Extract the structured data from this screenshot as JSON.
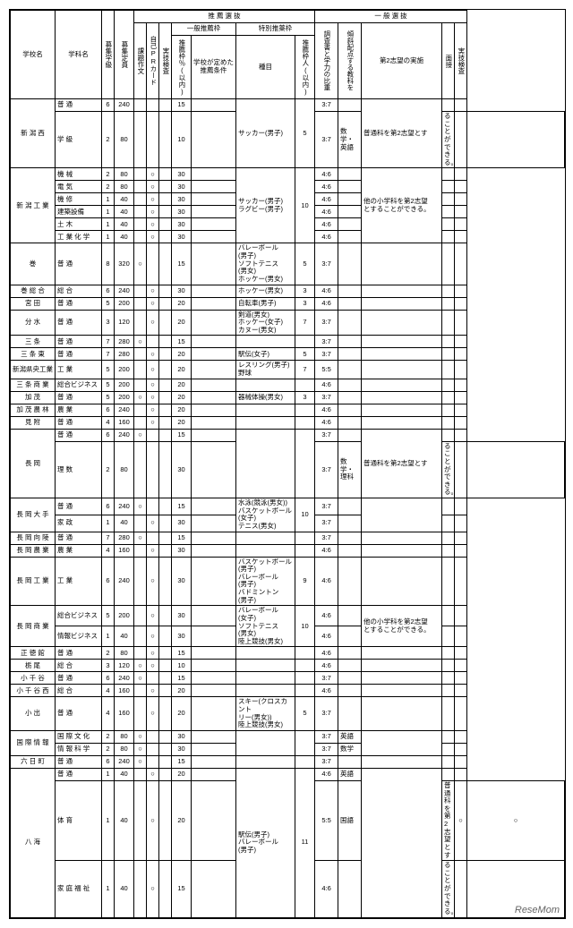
{
  "logo": "ReseMom",
  "header": {
    "school": "学校名",
    "dept": "学科名",
    "classes": "募集学級",
    "capacity": "募集定員",
    "suisen": "推 薦 選 抜",
    "ippan": "一 般 選 抜",
    "ippan_waku": "一般推薦枠",
    "tokubetsu_waku": "特別推薬枠",
    "kadai": "課題作文",
    "pr": "自己PRカード",
    "jitsugi_s": "実技検査",
    "suisen_pct": "推薦枠％(以内)",
    "gakko_cond": "学校が定めた推薦条件",
    "shumoku": "種目",
    "suisen_nin": "推薦枠人(以内)",
    "chousa": "調査書と学力の比重",
    "hairo": "傾斜配点する教科を",
    "dai2": "第2志望の実施",
    "mensetsu": "面接",
    "jitsugi_i": "実技検査"
  },
  "rows": [
    {
      "school": "新 潟 西",
      "g": 2,
      "dept": "普 通",
      "cl": "6",
      "cap": "240",
      "mk": [
        "",
        "",
        ""
      ],
      "pct": "15",
      "cond": "",
      "evt": "サッカー(男子)",
      "sp": "5",
      "rat": "3:7",
      "sub": "",
      "note": "普通科を第2志望とす"
    },
    {
      "school": "",
      "g": 0,
      "dept": "学 級",
      "cl": "2",
      "cap": "80",
      "mk": [
        "",
        "",
        ""
      ],
      "pct": "10",
      "cond": "",
      "evt": "",
      "sp": "",
      "rat": "3:7",
      "sub": "数学・英語",
      "note": "ることができる。"
    },
    {
      "school": "新 潟 工 業",
      "g": 6,
      "dept": "機 械",
      "cl": "2",
      "cap": "80",
      "mk": [
        "",
        "○",
        ""
      ],
      "pct": "30",
      "cond": "",
      "evt": "サッカー(男子)\nラグビー(男子)",
      "sp": "10",
      "rat": "4:6",
      "sub": "",
      "note": "他の小学科を第2志望\nとすることができる。"
    },
    {
      "school": "",
      "g": 0,
      "dept": "電 気",
      "cl": "2",
      "cap": "80",
      "mk": [
        "",
        "○",
        ""
      ],
      "pct": "30",
      "cond": "",
      "evt": "",
      "sp": "",
      "rat": "4:6",
      "sub": "",
      "note": ""
    },
    {
      "school": "",
      "g": 0,
      "dept": "機 修",
      "cl": "1",
      "cap": "40",
      "mk": [
        "",
        "○",
        ""
      ],
      "pct": "30",
      "cond": "",
      "evt": "",
      "sp": "",
      "rat": "4:6",
      "sub": "",
      "note": ""
    },
    {
      "school": "",
      "g": 0,
      "dept": "建築設備",
      "cl": "1",
      "cap": "40",
      "mk": [
        "",
        "○",
        ""
      ],
      "pct": "30",
      "cond": "",
      "evt": "",
      "sp": "",
      "rat": "4:6",
      "sub": "",
      "note": ""
    },
    {
      "school": "",
      "g": 0,
      "dept": "土 木",
      "cl": "1",
      "cap": "40",
      "mk": [
        "",
        "○",
        ""
      ],
      "pct": "30",
      "cond": "",
      "evt": "",
      "sp": "",
      "rat": "4:6",
      "sub": "",
      "note": ""
    },
    {
      "school": "",
      "g": 0,
      "dept": "工 業 化 学",
      "cl": "1",
      "cap": "40",
      "mk": [
        "",
        "○",
        ""
      ],
      "pct": "30",
      "cond": "",
      "evt": "",
      "sp": "",
      "rat": "4:6",
      "sub": "",
      "note": ""
    },
    {
      "school": "巻",
      "g": 1,
      "dept": "普 通",
      "cl": "8",
      "cap": "320",
      "mk": [
        "○",
        "",
        ""
      ],
      "pct": "15",
      "cond": "",
      "evt": "バレーボール\n(男子)\nソフトテニス\n(男女)\nホッケー(男女)",
      "sp": "5",
      "rat": "3:7",
      "sub": "",
      "note": ""
    },
    {
      "school": "巻 総 合",
      "g": 1,
      "dept": "総 合",
      "cl": "6",
      "cap": "240",
      "mk": [
        "",
        "○",
        ""
      ],
      "pct": "30",
      "cond": "",
      "evt": "ホッケー(男女)",
      "sp": "3",
      "rat": "4:6",
      "sub": "",
      "note": ""
    },
    {
      "school": "宮 田",
      "g": 1,
      "dept": "普 通",
      "cl": "5",
      "cap": "200",
      "mk": [
        "",
        "○",
        ""
      ],
      "pct": "20",
      "cond": "",
      "evt": "自転車(男子)",
      "sp": "3",
      "rat": "4:6",
      "sub": "",
      "note": ""
    },
    {
      "school": "分 水",
      "g": 1,
      "dept": "普 通",
      "cl": "3",
      "cap": "120",
      "mk": [
        "",
        "○",
        ""
      ],
      "pct": "20",
      "cond": "",
      "evt": "剣道(男女)\nホッケー(女子)\nカヌー(男女)",
      "sp": "7",
      "rat": "3:7",
      "sub": "",
      "note": ""
    },
    {
      "school": "三 条",
      "g": 1,
      "dept": "普 通",
      "cl": "7",
      "cap": "280",
      "mk": [
        "○",
        "",
        ""
      ],
      "pct": "15",
      "cond": "",
      "evt": "",
      "sp": "",
      "rat": "3:7",
      "sub": "",
      "note": ""
    },
    {
      "school": "三 条 東",
      "g": 1,
      "dept": "普 通",
      "cl": "7",
      "cap": "280",
      "mk": [
        "",
        "○",
        ""
      ],
      "pct": "20",
      "cond": "",
      "evt": "駅伝(女子)",
      "sp": "5",
      "rat": "3:7",
      "sub": "",
      "note": ""
    },
    {
      "school": "新潟県央工業",
      "g": 1,
      "dept": "工 業",
      "cl": "5",
      "cap": "200",
      "mk": [
        "",
        "○",
        ""
      ],
      "pct": "20",
      "cond": "",
      "evt": "レスリング(男子)\n野球",
      "sp": "7",
      "rat": "5:5",
      "sub": "",
      "note": ""
    },
    {
      "school": "三 条 商 業",
      "g": 1,
      "dept": "総合ビジネス",
      "cl": "5",
      "cap": "200",
      "mk": [
        "",
        "○",
        ""
      ],
      "pct": "20",
      "cond": "",
      "evt": "",
      "sp": "",
      "rat": "4:6",
      "sub": "",
      "note": ""
    },
    {
      "school": "加 茂",
      "g": 1,
      "dept": "普 通",
      "cl": "5",
      "cap": "200",
      "mk": [
        "○",
        "○",
        ""
      ],
      "pct": "20",
      "cond": "",
      "evt": "器械体操(男女)",
      "sp": "3",
      "rat": "3:7",
      "sub": "",
      "note": ""
    },
    {
      "school": "加 茂 農 林",
      "g": 1,
      "dept": "農 業",
      "cl": "6",
      "cap": "240",
      "mk": [
        "",
        "○",
        ""
      ],
      "pct": "20",
      "cond": "",
      "evt": "",
      "sp": "",
      "rat": "4:6",
      "sub": "",
      "note": ""
    },
    {
      "school": "見 附",
      "g": 1,
      "dept": "普 通",
      "cl": "4",
      "cap": "160",
      "mk": [
        "",
        "○",
        ""
      ],
      "pct": "20",
      "cond": "",
      "evt": "",
      "sp": "",
      "rat": "4:6",
      "sub": "",
      "note": ""
    },
    {
      "school": "長 岡",
      "g": 2,
      "dept": "普 通",
      "cl": "6",
      "cap": "240",
      "mk": [
        "○",
        "",
        ""
      ],
      "pct": "15",
      "cond": "",
      "evt": "",
      "sp": "",
      "rat": "3:7",
      "sub": "",
      "note": "普通科を第2志望とす"
    },
    {
      "school": "",
      "g": 0,
      "dept": "理 数",
      "cl": "2",
      "cap": "80",
      "mk": [
        "",
        "",
        ""
      ],
      "pct": "30",
      "cond": "",
      "evt": "",
      "sp": "",
      "rat": "3:7",
      "sub": "数学・理科",
      "note": "ることができる。"
    },
    {
      "school": "長 岡 大 手",
      "g": 2,
      "dept": "普 通",
      "cl": "6",
      "cap": "240",
      "mk": [
        "○",
        "",
        ""
      ],
      "pct": "15",
      "cond": "",
      "evt": "水泳(競泳(男女))\nバスケットボール\n(女子)\nテニス(男女)",
      "sp": "10",
      "rat": "3:7",
      "sub": "",
      "note": ""
    },
    {
      "school": "",
      "g": 0,
      "dept": "家 政",
      "cl": "1",
      "cap": "40",
      "mk": [
        "",
        "○",
        ""
      ],
      "pct": "30",
      "cond": "",
      "evt": "",
      "sp": "",
      "rat": "3:7",
      "sub": "",
      "note": ""
    },
    {
      "school": "長 岡 向 陵",
      "g": 1,
      "dept": "普 通",
      "cl": "7",
      "cap": "280",
      "mk": [
        "○",
        "",
        ""
      ],
      "pct": "15",
      "cond": "",
      "evt": "",
      "sp": "",
      "rat": "3:7",
      "sub": "",
      "note": ""
    },
    {
      "school": "長 岡 農 業",
      "g": 1,
      "dept": "農 業",
      "cl": "4",
      "cap": "160",
      "mk": [
        "",
        "○",
        ""
      ],
      "pct": "30",
      "cond": "",
      "evt": "",
      "sp": "",
      "rat": "4:6",
      "sub": "",
      "note": ""
    },
    {
      "school": "長 岡 工 業",
      "g": 1,
      "dept": "工 業",
      "cl": "6",
      "cap": "240",
      "mk": [
        "",
        "○",
        ""
      ],
      "pct": "30",
      "cond": "",
      "evt": "バスケットボール\n(男子)\nバレーボール\n(男子)\nバドミントン\n(男子)",
      "sp": "9",
      "rat": "4:6",
      "sub": "",
      "note": ""
    },
    {
      "school": "長 岡 商 業",
      "g": 2,
      "dept": "総合ビジネス",
      "cl": "5",
      "cap": "200",
      "mk": [
        "",
        "○",
        ""
      ],
      "pct": "30",
      "cond": "",
      "evt": "バレーボール\n(女子)\nソフトテニス\n(男女)\n陸上競技(男女)",
      "sp": "10",
      "rat": "4:6",
      "sub": "",
      "note": "他の小学科を第2志望\nとすることができる。"
    },
    {
      "school": "",
      "g": 0,
      "dept": "情報ビジネス",
      "cl": "1",
      "cap": "40",
      "mk": [
        "",
        "○",
        ""
      ],
      "pct": "30",
      "cond": "",
      "evt": "",
      "sp": "",
      "rat": "4:6",
      "sub": "",
      "note": ""
    },
    {
      "school": "正 徳 館",
      "g": 1,
      "dept": "普 通",
      "cl": "2",
      "cap": "80",
      "mk": [
        "",
        "○",
        ""
      ],
      "pct": "15",
      "cond": "",
      "evt": "",
      "sp": "",
      "rat": "4:6",
      "sub": "",
      "note": ""
    },
    {
      "school": "栃 尾",
      "g": 1,
      "dept": "総 合",
      "cl": "3",
      "cap": "120",
      "mk": [
        "○",
        "○",
        ""
      ],
      "pct": "10",
      "cond": "",
      "evt": "",
      "sp": "",
      "rat": "4:6",
      "sub": "",
      "note": ""
    },
    {
      "school": "小 千 谷",
      "g": 1,
      "dept": "普 通",
      "cl": "6",
      "cap": "240",
      "mk": [
        "○",
        "",
        ""
      ],
      "pct": "15",
      "cond": "",
      "evt": "",
      "sp": "",
      "rat": "3:7",
      "sub": "",
      "note": ""
    },
    {
      "school": "小 千 谷 西",
      "g": 1,
      "dept": "総 合",
      "cl": "4",
      "cap": "160",
      "mk": [
        "",
        "○",
        ""
      ],
      "pct": "20",
      "cond": "",
      "evt": "",
      "sp": "",
      "rat": "4:6",
      "sub": "",
      "note": ""
    },
    {
      "school": "小 出",
      "g": 1,
      "dept": "普 通",
      "cl": "4",
      "cap": "160",
      "mk": [
        "",
        "○",
        ""
      ],
      "pct": "20",
      "cond": "",
      "evt": "スキー(クロスカント\nリー(男女))\n陸上競技(男女)",
      "sp": "5",
      "rat": "3:7",
      "sub": "",
      "note": ""
    },
    {
      "school": "国 際 情 報",
      "g": 2,
      "dept": "国 際 文 化",
      "cl": "2",
      "cap": "80",
      "mk": [
        "○",
        "",
        ""
      ],
      "pct": "30",
      "cond": "",
      "evt": "",
      "sp": "",
      "rat": "3:7",
      "sub": "英語",
      "note": ""
    },
    {
      "school": "",
      "g": 0,
      "dept": "情 報 科 学",
      "cl": "2",
      "cap": "80",
      "mk": [
        "○",
        "",
        ""
      ],
      "pct": "30",
      "cond": "",
      "evt": "",
      "sp": "",
      "rat": "3:7",
      "sub": "数学",
      "note": ""
    },
    {
      "school": "六 日 町",
      "g": 1,
      "dept": "普 通",
      "cl": "6",
      "cap": "240",
      "mk": [
        "○",
        "",
        ""
      ],
      "pct": "15",
      "cond": "",
      "evt": "",
      "sp": "",
      "rat": "3:7",
      "sub": "",
      "note": ""
    },
    {
      "school": "八 海",
      "g": 3,
      "dept": "普 通",
      "cl": "1",
      "cap": "40",
      "mk": [
        "",
        "○",
        ""
      ],
      "pct": "20",
      "cond": "",
      "evt": "駅伝(男子)\nバレーボール\n(男子)",
      "sp": "11",
      "rat": "4:6",
      "sub": "英語",
      "note": ""
    },
    {
      "school": "",
      "g": 0,
      "dept": "体 育",
      "cl": "1",
      "cap": "40",
      "mk": [
        "",
        "○",
        ""
      ],
      "pct": "20",
      "cond": "",
      "evt": "",
      "sp": "",
      "rat": "5:5",
      "sub": "国語",
      "note": "普通科を第2志望とす",
      "ex": "○"
    },
    {
      "school": "",
      "g": 0,
      "dept": "家 庭 福 祉",
      "cl": "1",
      "cap": "40",
      "mk": [
        "",
        "○",
        ""
      ],
      "pct": "15",
      "cond": "",
      "evt": "",
      "sp": "",
      "rat": "4:6",
      "sub": "",
      "note": "ることができる。"
    }
  ]
}
